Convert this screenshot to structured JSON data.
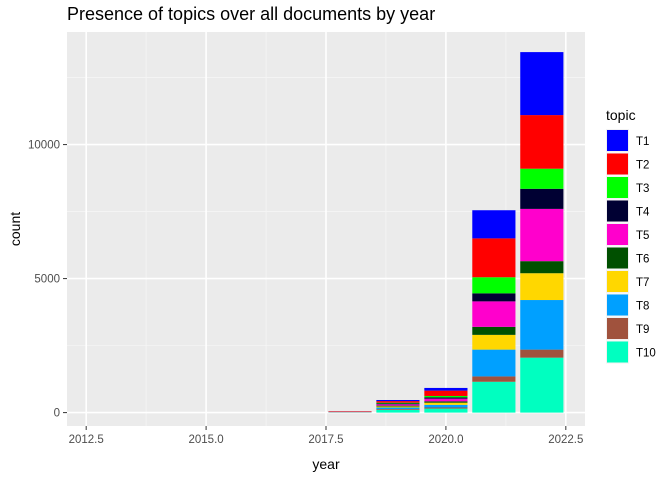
{
  "chart_data": {
    "type": "bar",
    "stacked": true,
    "title": "Presence of topics over all documents by year",
    "xlabel": "year",
    "ylabel": "count",
    "xlim": [
      2012.1,
      2022.9
    ],
    "ylim": [
      -500,
      14200
    ],
    "x_ticks": [
      2012.5,
      2015.0,
      2017.5,
      2020.0,
      2022.5
    ],
    "x_tick_labels": [
      "2012.5",
      "2015.0",
      "2017.5",
      "2020.0",
      "2022.5"
    ],
    "y_ticks": [
      0,
      5000,
      10000
    ],
    "y_tick_labels": [
      "0",
      "5000",
      "10000"
    ],
    "grid": true,
    "legend_title": "topic",
    "legend_position": "right",
    "x": [
      2018,
      2019,
      2020,
      2021,
      2022
    ],
    "series": [
      {
        "name": "T10",
        "color": "#00FFC0",
        "values": [
          5,
          100,
          150,
          1150,
          2050
        ]
      },
      {
        "name": "T9",
        "color": "#A0523D",
        "values": [
          3,
          30,
          40,
          200,
          300
        ]
      },
      {
        "name": "T8",
        "color": "#00A0FF",
        "values": [
          5,
          60,
          100,
          1000,
          1850
        ]
      },
      {
        "name": "T7",
        "color": "#FFD700",
        "values": [
          3,
          40,
          80,
          550,
          1000
        ]
      },
      {
        "name": "T6",
        "color": "#005000",
        "values": [
          3,
          30,
          50,
          300,
          450
        ]
      },
      {
        "name": "T5",
        "color": "#FF00CC",
        "values": [
          5,
          50,
          100,
          950,
          1950
        ]
      },
      {
        "name": "T4",
        "color": "#000033",
        "values": [
          3,
          30,
          50,
          300,
          750
        ]
      },
      {
        "name": "T3",
        "color": "#00FF00",
        "values": [
          3,
          30,
          50,
          600,
          750
        ]
      },
      {
        "name": "T2",
        "color": "#FF0000",
        "values": [
          20,
          60,
          200,
          1450,
          2000
        ]
      },
      {
        "name": "T1",
        "color": "#0000FF",
        "values": [
          3,
          40,
          100,
          1050,
          2350
        ]
      }
    ]
  }
}
